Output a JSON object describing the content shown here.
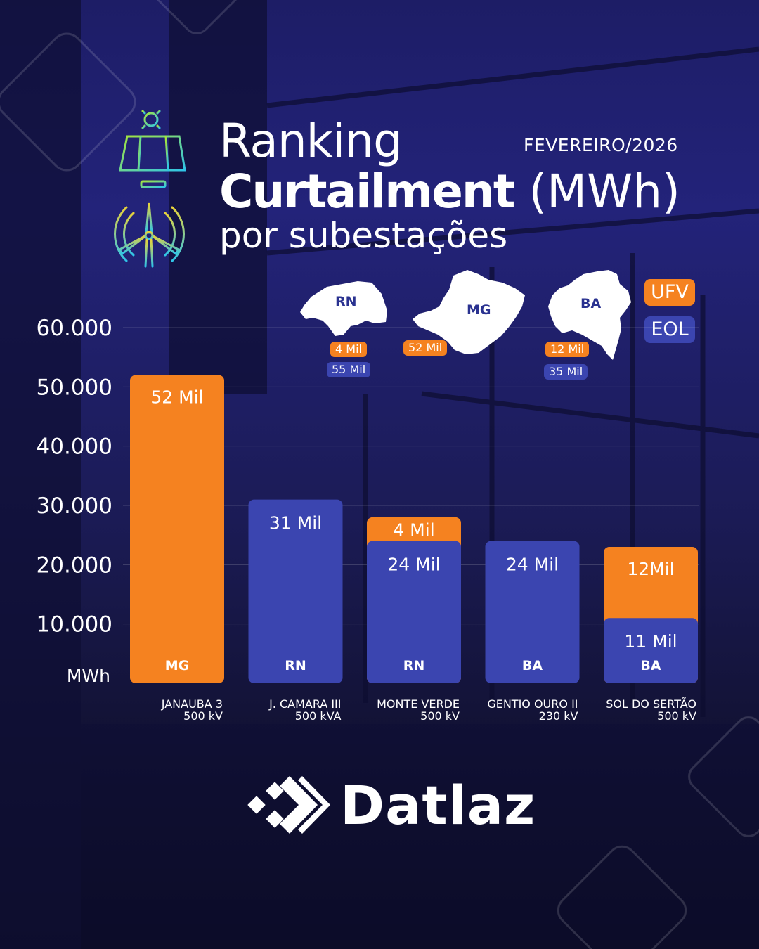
{
  "header": {
    "title_line1": "Ranking",
    "title_bold": "Curtailment",
    "title_unit": "(MWh)",
    "title_line3": "por subestações",
    "date": "FEVEREIRO/2026"
  },
  "legend": {
    "ufv": "UFV",
    "eol": "EOL"
  },
  "states": [
    {
      "code": "RN",
      "ufv": "4 Mil",
      "eol": "55 Mil"
    },
    {
      "code": "MG",
      "ufv": "52 Mil"
    },
    {
      "code": "BA",
      "ufv": "12 Mil",
      "eol": "35 Mil"
    }
  ],
  "colors": {
    "ufv": "#f58220",
    "eol": "#3b45b0",
    "background": "#1d1d66"
  },
  "icons": [
    "solar-panel-icon",
    "wind-turbine-icon",
    "datlaz-logo-icon"
  ],
  "brand": {
    "name": "Datlaz"
  },
  "chart_data": {
    "type": "bar",
    "stacked": true,
    "categories": [
      {
        "name": "JANAUBA 3",
        "voltage": "500 kV",
        "state": "MG"
      },
      {
        "name": "J. CAMARA III",
        "voltage": "500 kVA",
        "state": "RN"
      },
      {
        "name": "MONTE VERDE",
        "voltage": "500 kV",
        "state": "RN"
      },
      {
        "name": "GENTIO OURO II",
        "voltage": "230 kV",
        "state": "BA"
      },
      {
        "name": "SOL DO SERTÃO",
        "voltage": "500 kV",
        "state": "BA"
      }
    ],
    "series": [
      {
        "name": "EOL",
        "values": [
          0,
          31000,
          24000,
          24000,
          11000
        ],
        "labels": [
          "",
          "31 Mil",
          "24 Mil",
          "24 Mil",
          "11 Mil"
        ]
      },
      {
        "name": "UFV",
        "values": [
          52000,
          0,
          4000,
          0,
          12000
        ],
        "labels": [
          "52 Mil",
          "",
          "4 Mil",
          "",
          "12Mil"
        ]
      }
    ],
    "yticks": [
      "60.000",
      "50.000",
      "40.000",
      "30.000",
      "20.000",
      "10.000"
    ],
    "ylabel": "MWh",
    "ylim": [
      0,
      60000
    ],
    "grid": true
  }
}
